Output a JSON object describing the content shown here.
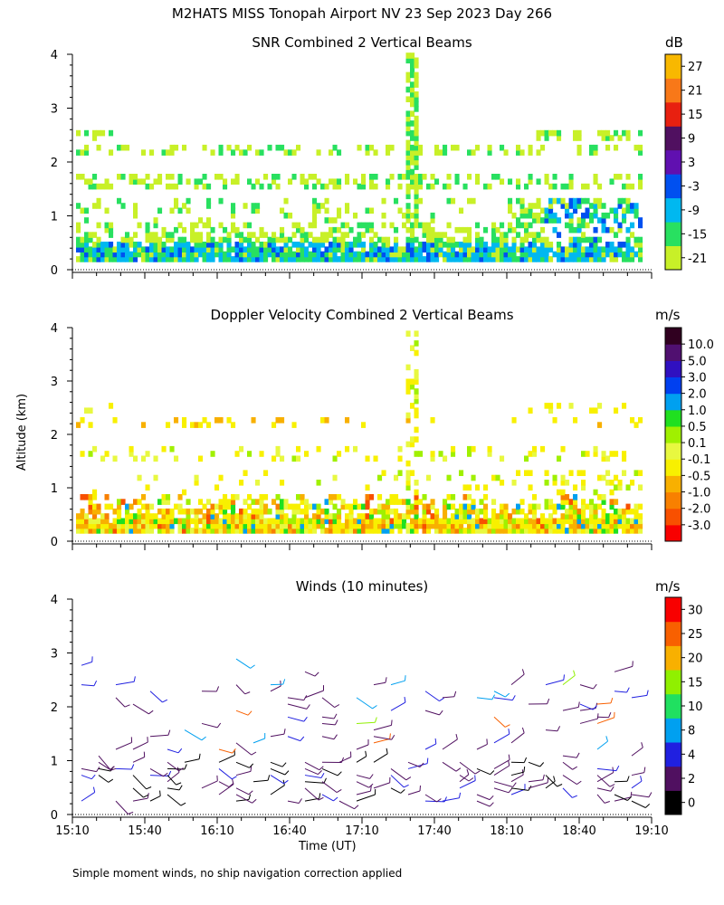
{
  "title": "M2HATS MISS Tonopah Airport NV  23 Sep 2023 Day 266",
  "footnote": "Simple moment winds, no ship navigation correction applied",
  "chart_data": [
    {
      "type": "heatmap",
      "title": "SNR Combined 2 Vertical Beams",
      "ylabel": "Altitude (km)",
      "ylim": [
        0,
        4
      ],
      "yticks": [
        "0",
        "1",
        "2",
        "3",
        "4"
      ],
      "colorbar_unit": "dB",
      "colorbar_labels": [
        "-21",
        "-15",
        "-9",
        "-3",
        "3",
        "9",
        "15",
        "21",
        "27"
      ],
      "colorbar_colors": [
        "#c8f028",
        "#28e060",
        "#00b8f0",
        "#0050f0",
        "#6010b0",
        "#501060",
        "#e82010",
        "#f87818",
        "#f8b800"
      ]
    },
    {
      "type": "heatmap",
      "title": "Doppler Velocity Combined 2 Vertical Beams",
      "ylabel": "Altitude (km)",
      "ylim": [
        0,
        4
      ],
      "yticks": [
        "0",
        "1",
        "2",
        "3",
        "4"
      ],
      "colorbar_unit": "m/s",
      "colorbar_labels": [
        "-3.0",
        "-2.0",
        "-1.0",
        "-0.5",
        "-0.1",
        "0.1",
        "0.5",
        "1.0",
        "2.0",
        "3.0",
        "5.0",
        "10.0"
      ],
      "colorbar_colors": [
        "#f80000",
        "#f85000",
        "#f88000",
        "#f8b000",
        "#f8f000",
        "#e8f840",
        "#a0f000",
        "#20e020",
        "#00a0f0",
        "#0040f0",
        "#3010c0",
        "#501070",
        "#300020"
      ]
    },
    {
      "type": "scatter",
      "title": "Winds (10 minutes)",
      "ylabel": "Altitude (km)",
      "xlabel": "Time (UT)",
      "ylim": [
        0,
        4
      ],
      "yticks": [
        "0",
        "1",
        "2",
        "3",
        "4"
      ],
      "xticks": [
        "15:10",
        "15:40",
        "16:10",
        "16:40",
        "17:10",
        "17:40",
        "18:10",
        "18:40",
        "19:10"
      ],
      "colorbar_unit": "m/s",
      "colorbar_labels": [
        "0",
        "2",
        "4",
        "8",
        "10",
        "15",
        "20",
        "25",
        "30"
      ],
      "colorbar_colors": [
        "#000000",
        "#501060",
        "#2020e0",
        "#00a0f0",
        "#20e060",
        "#90f000",
        "#f8b000",
        "#f86000",
        "#f80000"
      ]
    }
  ]
}
